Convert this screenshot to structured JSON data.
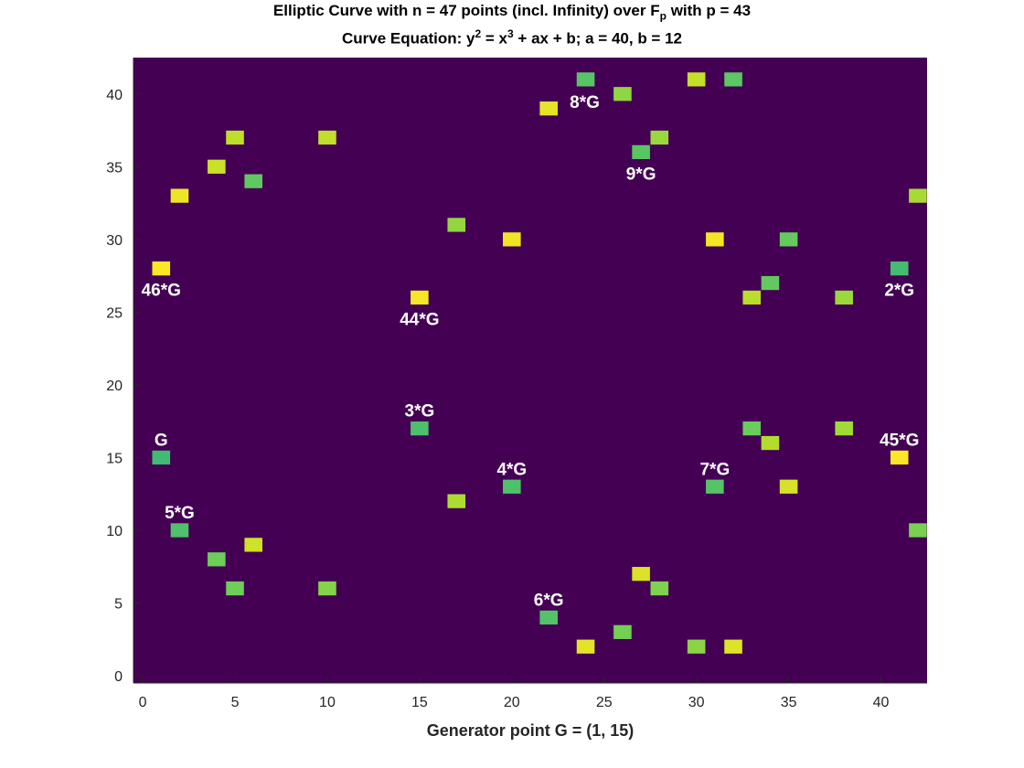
{
  "chart_data": {
    "type": "scatter",
    "title_parts": {
      "t1a": "Elliptic Curve with n = 47 points (incl. Infinity) over F",
      "t1b": "p",
      "t1c": " with p = 43",
      "t2a": "Curve Equation:  y",
      "t2b": "2",
      "t2c": " = x",
      "t2d": "3",
      "t2e": " + ax + b;  a = 40, b = 12"
    },
    "xlabel": "Generator point G = (1, 15)",
    "ylabel": "",
    "xlim": [
      -0.5,
      42.5
    ],
    "ylim": [
      -0.5,
      42.5
    ],
    "xticks": [
      0,
      5,
      10,
      15,
      20,
      25,
      30,
      35,
      40
    ],
    "yticks": [
      0,
      5,
      10,
      15,
      20,
      25,
      30,
      35,
      40
    ],
    "grid": false,
    "colors": {
      "background": "#440154",
      "scale": [
        "#21908d",
        "#35b779",
        "#6ece58",
        "#b5de2b",
        "#fde725"
      ]
    },
    "points": [
      {
        "x": 1,
        "y": 15,
        "c": 0.3,
        "label": "G"
      },
      {
        "x": 41,
        "y": 28,
        "c": 0.32,
        "label": "2*G"
      },
      {
        "x": 15,
        "y": 17,
        "c": 0.35,
        "label": "3*G"
      },
      {
        "x": 20,
        "y": 13,
        "c": 0.36,
        "label": "4*G"
      },
      {
        "x": 2,
        "y": 10,
        "c": 0.36,
        "label": "5*G"
      },
      {
        "x": 22,
        "y": 4,
        "c": 0.38,
        "label": "6*G"
      },
      {
        "x": 31,
        "y": 13,
        "c": 0.39,
        "label": "7*G"
      },
      {
        "x": 24,
        "y": 41,
        "c": 0.4,
        "label": "8*G"
      },
      {
        "x": 27,
        "y": 36,
        "c": 0.41,
        "label": "9*G"
      },
      {
        "x": 15,
        "y": 26,
        "c": 0.98,
        "label": "44*G"
      },
      {
        "x": 41,
        "y": 15,
        "c": 0.99,
        "label": "45*G"
      },
      {
        "x": 1,
        "y": 28,
        "c": 1.0,
        "label": "46*G"
      },
      {
        "x": 32,
        "y": 41,
        "c": 0.42,
        "label": ""
      },
      {
        "x": 6,
        "y": 34,
        "c": 0.44,
        "label": ""
      },
      {
        "x": 34,
        "y": 27,
        "c": 0.45,
        "label": ""
      },
      {
        "x": 35,
        "y": 30,
        "c": 0.46,
        "label": ""
      },
      {
        "x": 33,
        "y": 17,
        "c": 0.48,
        "label": ""
      },
      {
        "x": 4,
        "y": 8,
        "c": 0.49,
        "label": ""
      },
      {
        "x": 5,
        "y": 6,
        "c": 0.5,
        "label": ""
      },
      {
        "x": 26,
        "y": 3,
        "c": 0.52,
        "label": ""
      },
      {
        "x": 42,
        "y": 10,
        "c": 0.54,
        "label": ""
      },
      {
        "x": 28,
        "y": 6,
        "c": 0.56,
        "label": ""
      },
      {
        "x": 10,
        "y": 6,
        "c": 0.58,
        "label": ""
      },
      {
        "x": 30,
        "y": 2,
        "c": 0.6,
        "label": ""
      },
      {
        "x": 26,
        "y": 40,
        "c": 0.62,
        "label": ""
      },
      {
        "x": 17,
        "y": 31,
        "c": 0.63,
        "label": ""
      },
      {
        "x": 28,
        "y": 37,
        "c": 0.65,
        "label": ""
      },
      {
        "x": 38,
        "y": 26,
        "c": 0.66,
        "label": ""
      },
      {
        "x": 38,
        "y": 17,
        "c": 0.68,
        "label": ""
      },
      {
        "x": 42,
        "y": 33,
        "c": 0.7,
        "label": ""
      },
      {
        "x": 17,
        "y": 12,
        "c": 0.72,
        "label": ""
      },
      {
        "x": 34,
        "y": 16,
        "c": 0.74,
        "label": ""
      },
      {
        "x": 33,
        "y": 26,
        "c": 0.76,
        "label": ""
      },
      {
        "x": 5,
        "y": 37,
        "c": 0.78,
        "label": ""
      },
      {
        "x": 10,
        "y": 37,
        "c": 0.79,
        "label": ""
      },
      {
        "x": 30,
        "y": 41,
        "c": 0.8,
        "label": ""
      },
      {
        "x": 4,
        "y": 35,
        "c": 0.82,
        "label": ""
      },
      {
        "x": 6,
        "y": 9,
        "c": 0.84,
        "label": ""
      },
      {
        "x": 35,
        "y": 13,
        "c": 0.86,
        "label": ""
      },
      {
        "x": 27,
        "y": 7,
        "c": 0.88,
        "label": ""
      },
      {
        "x": 32,
        "y": 2,
        "c": 0.89,
        "label": ""
      },
      {
        "x": 24,
        "y": 2,
        "c": 0.91,
        "label": ""
      },
      {
        "x": 22,
        "y": 39,
        "c": 0.92,
        "label": ""
      },
      {
        "x": 2,
        "y": 33,
        "c": 0.94,
        "label": ""
      },
      {
        "x": 20,
        "y": 30,
        "c": 0.95,
        "label": ""
      },
      {
        "x": 31,
        "y": 30,
        "c": 0.97,
        "label": ""
      }
    ]
  }
}
